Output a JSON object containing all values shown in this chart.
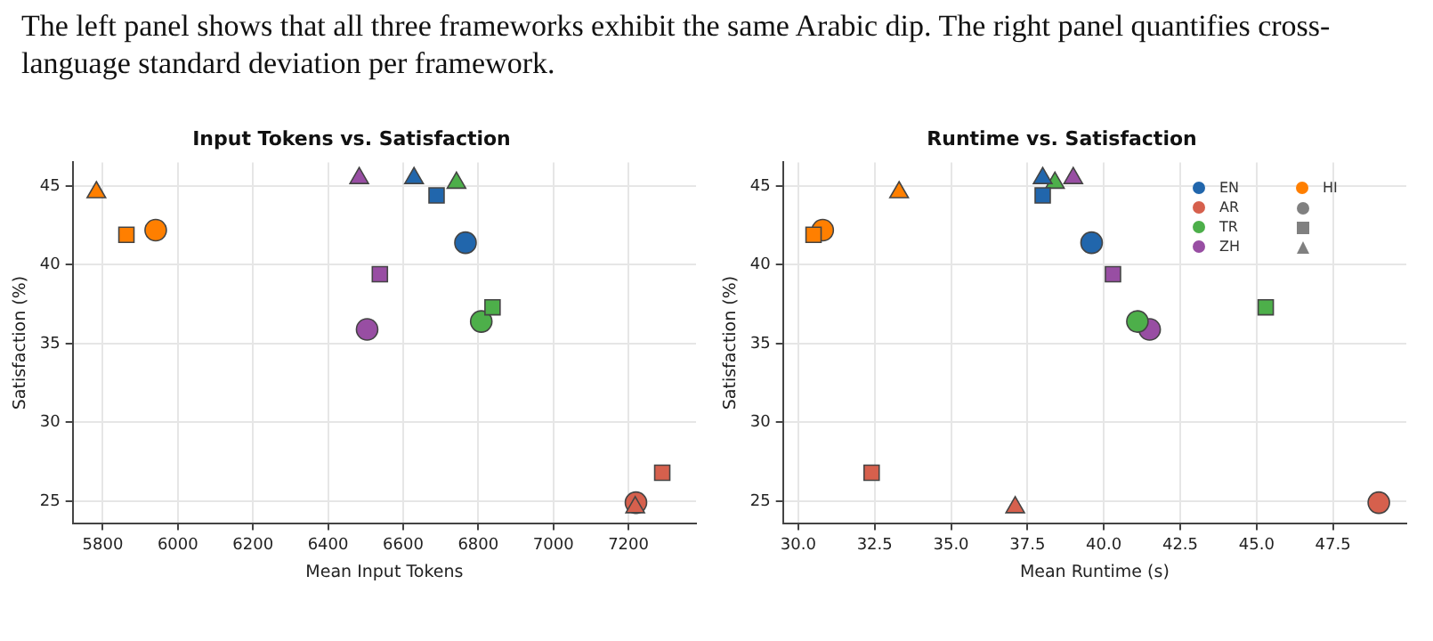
{
  "chart_data": [
    {
      "type": "scatter",
      "title": "Input Tokens vs. Satisfaction",
      "xlabel": "Mean Input Tokens",
      "ylabel": "Satisfaction (%)",
      "annotations": [
        "The left panel shows that all three frameworks exhibit the same Arabic dip. The right panel quantifies cross-language standard deviation per framework."
      ],
      "xlim": [
        5720,
        7380
      ],
      "xticks": [
        5800,
        6000,
        6200,
        6400,
        6600,
        6800,
        7000,
        7200
      ],
      "ylim": [
        23.6,
        46.5
      ],
      "yticks": [
        25,
        30,
        35,
        40,
        45
      ],
      "grid": true,
      "legend": false,
      "series": [
        {
          "color": "#2166ac",
          "x": [
            6766,
            6689,
            6629
          ],
          "values": [
            41.4,
            44.4,
            45.5
          ],
          "marker": [
            "circle",
            "square",
            "triangle"
          ]
        },
        {
          "color": "#d6604d",
          "x": [
            7220,
            7290,
            7218
          ],
          "values": [
            24.9,
            26.8,
            24.6
          ],
          "marker": [
            "circle",
            "square",
            "triangle"
          ]
        },
        {
          "color": "#4daf4a",
          "x": [
            6808,
            6838,
            6742
          ],
          "values": [
            36.4,
            37.3,
            45.2
          ],
          "marker": [
            "circle",
            "square",
            "triangle"
          ]
        },
        {
          "color": "#984ea3",
          "x": [
            6504,
            6538,
            6483
          ],
          "values": [
            35.9,
            39.4,
            45.5
          ],
          "marker": [
            "circle",
            "square",
            "triangle"
          ]
        },
        {
          "color": "#ff7f00",
          "x": [
            5941,
            5863,
            5783
          ],
          "values": [
            42.2,
            41.9,
            44.6
          ],
          "marker": [
            "circle",
            "square",
            "triangle"
          ]
        }
      ]
    },
    {
      "type": "scatter",
      "title": "Runtime vs. Satisfaction",
      "xlabel": "Mean Runtime (s)",
      "ylabel": "Satisfaction (%)",
      "xlim": [
        29.5,
        49.9
      ],
      "xticks": [
        {
          "value": 30,
          "label": "30.0"
        },
        {
          "value": 32.5,
          "label": "32.5"
        },
        {
          "value": 35,
          "label": "35.0"
        },
        {
          "value": 37.5,
          "label": "37.5"
        },
        {
          "value": 40,
          "label": "40.0"
        },
        {
          "value": 42.5,
          "label": "42.5"
        },
        {
          "value": 45,
          "label": "45.0"
        },
        {
          "value": 47.5,
          "label": "47.5"
        }
      ],
      "ylim": [
        23.6,
        46.5
      ],
      "yticks": [
        25,
        30,
        35,
        40,
        45
      ],
      "grid": true,
      "legend": "top right",
      "series": [
        {
          "name": "EN",
          "color": "#2166ac",
          "x": [
            39.6,
            38.0,
            38.0
          ],
          "values": [
            41.4,
            44.4,
            45.5
          ],
          "marker": [
            "circle",
            "square",
            "triangle"
          ]
        },
        {
          "name": "AR",
          "color": "#d6604d",
          "x": [
            49.0,
            32.4,
            37.1
          ],
          "values": [
            24.9,
            26.8,
            24.6
          ],
          "marker": [
            "circle",
            "square",
            "triangle"
          ]
        },
        {
          "name": "TR",
          "color": "#4daf4a",
          "x": [
            41.1,
            45.3,
            38.4
          ],
          "values": [
            36.4,
            37.3,
            45.2
          ],
          "marker": [
            "circle",
            "square",
            "triangle"
          ]
        },
        {
          "name": "ZH",
          "color": "#984ea3",
          "x": [
            41.5,
            40.3,
            39.0
          ],
          "values": [
            35.9,
            39.4,
            45.5
          ],
          "marker": [
            "circle",
            "square",
            "triangle"
          ]
        },
        {
          "name": "HI",
          "color": "#ff7f00",
          "x": [
            30.8,
            30.5,
            33.3
          ],
          "values": [
            42.2,
            41.9,
            44.6
          ],
          "marker": [
            "circle",
            "square",
            "triangle"
          ]
        }
      ]
    }
  ]
}
